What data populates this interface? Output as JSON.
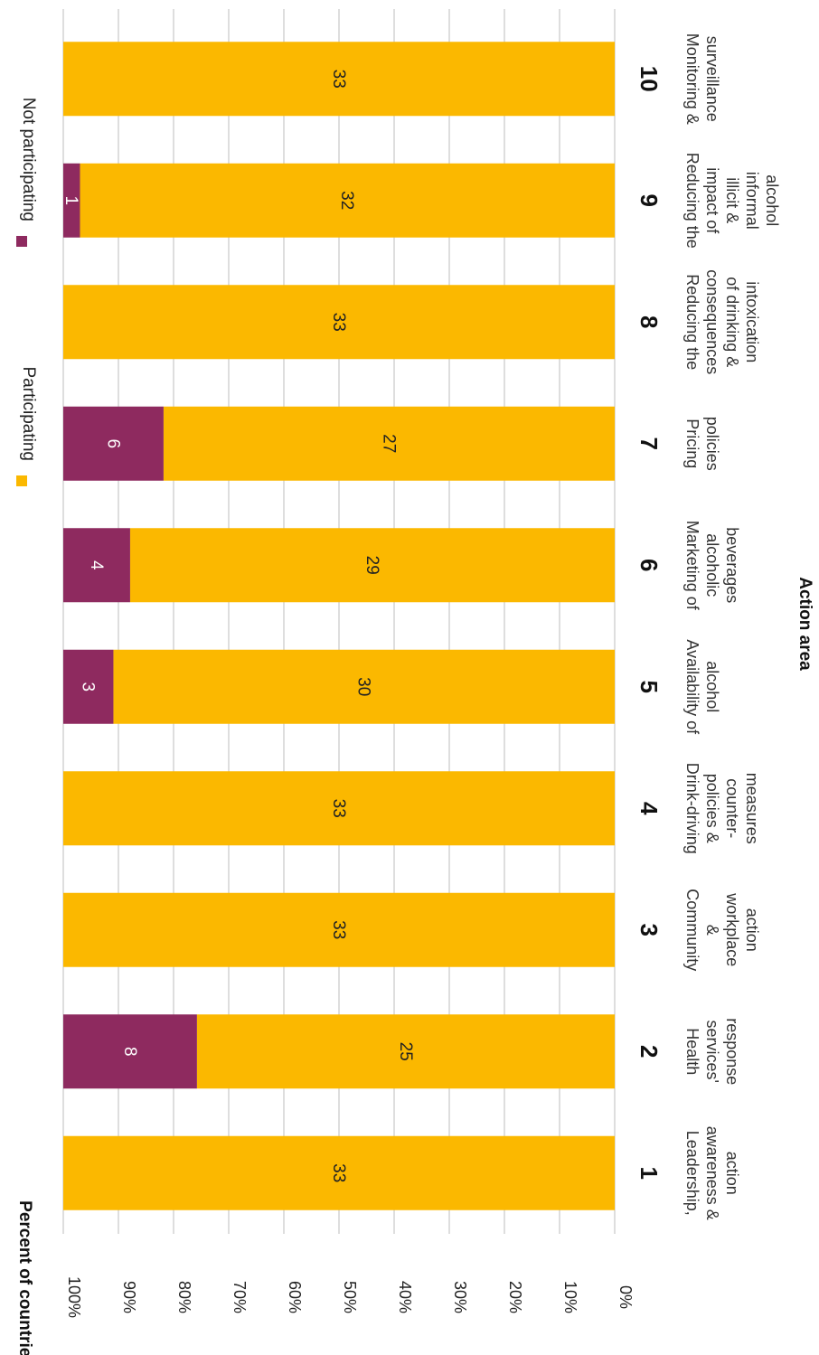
{
  "chart_data": {
    "type": "bar",
    "stacked": true,
    "orientation": "horizontal-rotated",
    "xlabel": "Action area",
    "ylabel": "Percent of countries",
    "ylim": [
      0,
      100
    ],
    "y_ticks": [
      "0%",
      "10%",
      "20%",
      "30%",
      "40%",
      "50%",
      "60%",
      "70%",
      "80%",
      "90%",
      "100%"
    ],
    "grid": true,
    "legend_position": "top",
    "categories": [
      "1",
      "2",
      "3",
      "4",
      "5",
      "6",
      "7",
      "8",
      "9",
      "10"
    ],
    "category_labels": [
      [
        "Leadership,",
        "awareness &",
        "action"
      ],
      [
        "Health",
        "services'",
        "response"
      ],
      [
        "Community",
        "&",
        "workplace",
        "action"
      ],
      [
        "Drink-driving",
        "policies &",
        "counter-",
        "measures"
      ],
      [
        "Availability of",
        "alcohol"
      ],
      [
        "Marketing of",
        "alcoholic",
        "beverages"
      ],
      [
        "Pricing",
        "policies"
      ],
      [
        "Reducing the",
        "consequences",
        "of drinking &",
        "intoxication"
      ],
      [
        "Reducing the",
        "impact of",
        "illicit &",
        "informal",
        "alcohol"
      ],
      [
        "Monitoring &",
        "surveillance"
      ]
    ],
    "series": [
      {
        "name": "Participating",
        "color": "#fbb800",
        "label_color": "#222222",
        "values": [
          33,
          25,
          33,
          33,
          30,
          29,
          27,
          33,
          32,
          33
        ]
      },
      {
        "name": "Not participating",
        "color": "#8e2a5f",
        "label_color": "#ffffff",
        "values": [
          0,
          8,
          0,
          0,
          3,
          4,
          6,
          0,
          1,
          0
        ]
      }
    ]
  }
}
